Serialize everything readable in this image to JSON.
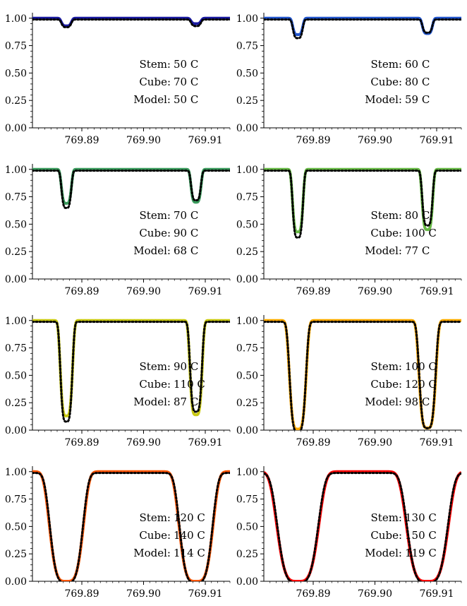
{
  "chart_data": {
    "type": "line",
    "layout": "4x2 grid of panels",
    "x_range": [
      769.882,
      769.914
    ],
    "y_range": [
      0,
      1.05
    ],
    "x_ticks": [
      "769.89",
      "769.90",
      "769.91"
    ],
    "y_ticks": [
      "0.00",
      "0.25",
      "0.50",
      "0.75",
      "1.00"
    ],
    "line_centers": [
      769.8875,
      769.9085
    ],
    "label_keys": [
      "Stem:",
      "Cube:",
      "Model:"
    ],
    "panels": [
      {
        "stem": "50 C",
        "cube": "70 C",
        "model": "50 C",
        "color": "#1a1aa0",
        "depth1": 0.07,
        "depth2": 0.05,
        "model_depth1": 0.07,
        "model_depth2": 0.06,
        "width": 0.0009
      },
      {
        "stem": "60 C",
        "cube": "80 C",
        "model": "59 C",
        "color": "#2255cc",
        "depth1": 0.15,
        "depth2": 0.14,
        "model_depth1": 0.17,
        "model_depth2": 0.12,
        "width": 0.0009
      },
      {
        "stem": "70 C",
        "cube": "90 C",
        "model": "68 C",
        "color": "#3a9a5c",
        "depth1": 0.31,
        "depth2": 0.3,
        "model_depth1": 0.34,
        "model_depth2": 0.27,
        "width": 0.0009
      },
      {
        "stem": "80 C",
        "cube": "100 C",
        "model": "77 C",
        "color": "#66b844",
        "depth1": 0.57,
        "depth2": 0.55,
        "model_depth1": 0.61,
        "model_depth2": 0.5,
        "width": 0.00095
      },
      {
        "stem": "90 C",
        "cube": "110 C",
        "model": "87 C",
        "color": "#c8c814",
        "depth1": 0.87,
        "depth2": 0.86,
        "model_depth1": 0.91,
        "model_depth2": 0.82,
        "width": 0.0011
      },
      {
        "stem": "100 C",
        "cube": "120 C",
        "model": "98 C",
        "color": "#ffaa00",
        "depth1": 0.99,
        "depth2": 0.98,
        "model_depth1": 1.0,
        "model_depth2": 0.97,
        "width": 0.0015
      },
      {
        "stem": "120 C",
        "cube": "140 C",
        "model": "114 C",
        "color": "#ff5500",
        "depth1": 1.0,
        "depth2": 1.0,
        "model_depth1": 1.0,
        "model_depth2": 1.0,
        "width": 0.003
      },
      {
        "stem": "130 C",
        "cube": "150 C",
        "model": "119 C",
        "color": "#ff0000",
        "depth1": 1.0,
        "depth2": 1.0,
        "model_depth1": 1.0,
        "model_depth2": 1.0,
        "width": 0.0037
      }
    ]
  }
}
